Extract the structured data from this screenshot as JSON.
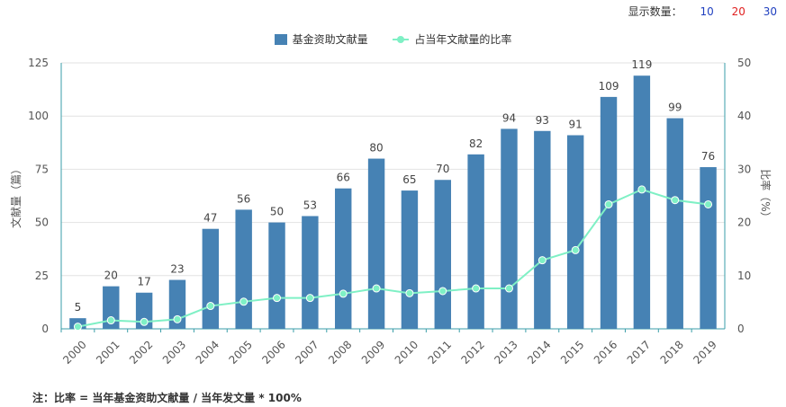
{
  "display_count": {
    "label": "显示数量：",
    "options": [
      {
        "text": "10",
        "color": "#1f3fbf"
      },
      {
        "text": "20",
        "color": "#e02020"
      },
      {
        "text": "30",
        "color": "#1f3fbf"
      }
    ]
  },
  "footnote": "注：比率 = 当年基金资助文献量 / 当年发文量 * 100%",
  "chart_data": {
    "type": "bar",
    "categories": [
      "2000",
      "2001",
      "2002",
      "2003",
      "2004",
      "2005",
      "2006",
      "2007",
      "2008",
      "2009",
      "2010",
      "2011",
      "2012",
      "2013",
      "2014",
      "2015",
      "2016",
      "2017",
      "2018",
      "2019"
    ],
    "series": [
      {
        "name": "基金资助文献量",
        "type": "bar",
        "axis": "left",
        "color": "#4682b4",
        "values": [
          5,
          20,
          17,
          23,
          47,
          56,
          50,
          53,
          66,
          80,
          65,
          70,
          82,
          94,
          93,
          91,
          109,
          119,
          99,
          76
        ]
      },
      {
        "name": "占当年文献量的比率",
        "type": "line",
        "axis": "right",
        "color": "#7ff0c5",
        "values": [
          0.4,
          1.6,
          1.3,
          1.8,
          4.3,
          5.1,
          5.8,
          5.8,
          6.6,
          7.6,
          6.7,
          7.1,
          7.6,
          7.6,
          12.9,
          14.8,
          23.4,
          26.2,
          24.2,
          23.4
        ]
      }
    ],
    "ylabel_left": "文献量（篇）",
    "ylabel_right": "比率（%）",
    "ylim_left": [
      0,
      125
    ],
    "ylim_right": [
      0,
      50
    ],
    "yticks_left": [
      0,
      25,
      50,
      75,
      100,
      125
    ],
    "yticks_right": [
      0,
      10,
      20,
      30,
      40,
      50
    ],
    "grid": true,
    "legend_position": "top-center",
    "axis_color": "#3a9ea8"
  }
}
